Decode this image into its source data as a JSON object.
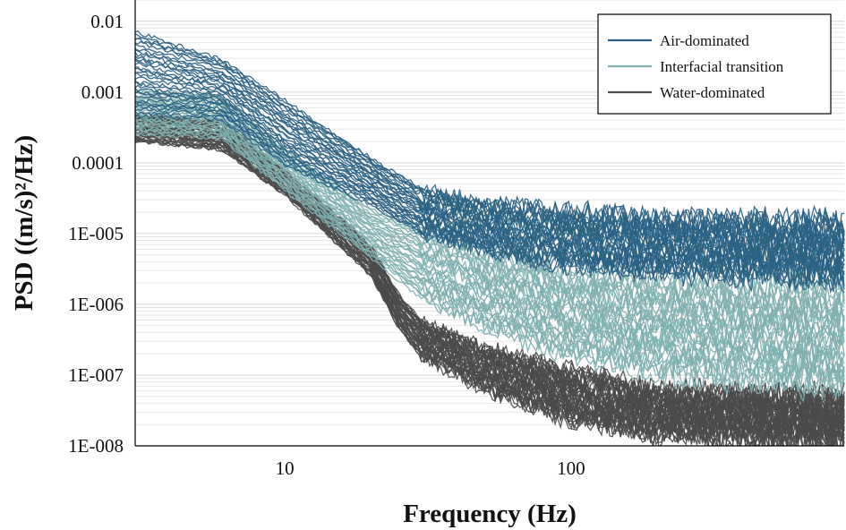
{
  "chart_data": {
    "type": "line",
    "xlabel": "Frequency (Hz)",
    "ylabel": "PSD ((m/s)²/Hz)",
    "x_scale": "log",
    "y_scale": "log",
    "xlim": [
      3,
      900
    ],
    "ylim": [
      1e-08,
      0.02
    ],
    "x_ticks": [
      {
        "value": 10,
        "label": "10"
      },
      {
        "value": 100,
        "label": "100"
      }
    ],
    "y_ticks": [
      {
        "value": 0.01,
        "label": "0.01"
      },
      {
        "value": 0.001,
        "label": "0.001"
      },
      {
        "value": 0.0001,
        "label": "0.0001"
      },
      {
        "value": 1e-05,
        "label": "1E-005"
      },
      {
        "value": 1e-06,
        "label": "1E-006"
      },
      {
        "value": 1e-07,
        "label": "1E-007"
      },
      {
        "value": 1e-08,
        "label": "1E-008"
      }
    ],
    "grid": "horizontal minor gridlines",
    "legend_position": "top-right",
    "series_groups": [
      {
        "name": "Air-dominated",
        "color": "#2b6283",
        "curve_count": 32,
        "x": [
          3,
          6,
          10,
          20,
          30,
          50,
          100,
          200,
          500,
          900
        ],
        "y_low": [
          0.00045,
          0.0004,
          9e-05,
          2.5e-05,
          9.5e-06,
          5.5e-06,
          3.2e-06,
          2.8e-06,
          2.4e-06,
          2.2e-06
        ],
        "y_high": [
          0.0075,
          0.003,
          0.0008,
          0.00012,
          4.5e-05,
          2.8e-05,
          2.2e-05,
          1.8e-05,
          1.6e-05,
          1.5e-05
        ]
      },
      {
        "name": "Interfacial transition",
        "color": "#7fb0b0",
        "curve_count": 30,
        "x": [
          3,
          6,
          10,
          20,
          30,
          50,
          100,
          200,
          500,
          900
        ],
        "y_low": [
          0.00025,
          0.00022,
          4e-05,
          4.5e-06,
          1.2e-06,
          4.5e-07,
          1.8e-07,
          1e-07,
          7e-08,
          7e-08
        ],
        "y_high": [
          0.0011,
          0.0009,
          0.00016,
          2.2e-05,
          1.2e-05,
          6e-06,
          3e-06,
          2.5e-06,
          2e-06,
          1.8e-06
        ]
      },
      {
        "name": "Water-dominated",
        "color": "#4b4b4b",
        "curve_count": 40,
        "x": [
          3,
          6,
          10,
          20,
          25,
          30,
          40,
          50,
          100,
          200,
          500,
          900
        ],
        "y_low": [
          0.0002,
          0.00015,
          3.5e-05,
          2.5e-06,
          4.5e-07,
          1.8e-07,
          1e-07,
          6e-08,
          2.2e-08,
          1.4e-08,
          1.2e-08,
          1.1e-08
        ],
        "y_high": [
          0.0005,
          0.0004,
          8e-05,
          7e-06,
          1.4e-06,
          6e-07,
          3.5e-07,
          2.5e-07,
          1.2e-07,
          6.5e-08,
          5.5e-08,
          5e-08
        ]
      }
    ]
  }
}
